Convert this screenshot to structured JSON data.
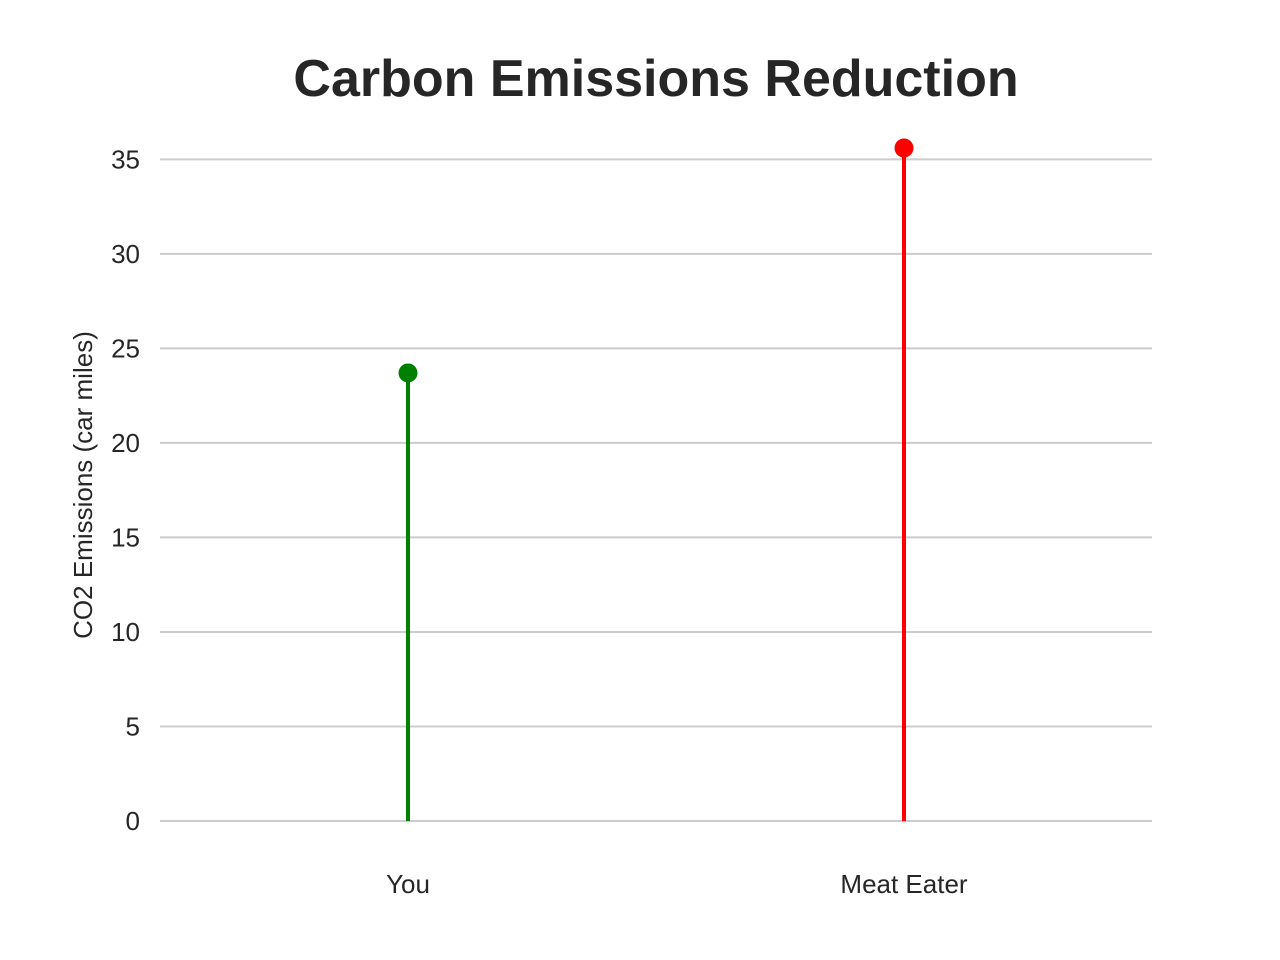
{
  "chart_data": {
    "type": "lollipop",
    "title": "Carbon Emissions Reduction",
    "xlabel": "",
    "ylabel": "CO2 Emissions (car miles)",
    "categories": [
      "You",
      "Meat Eater"
    ],
    "values": [
      23.7,
      35.6
    ],
    "colors": [
      "#008000",
      "#ff0000"
    ],
    "ylim": [
      0,
      35.6
    ],
    "yticks": [
      0,
      5,
      10,
      15,
      20,
      25,
      30,
      35
    ],
    "grid": "horizontal",
    "legend": "none"
  }
}
